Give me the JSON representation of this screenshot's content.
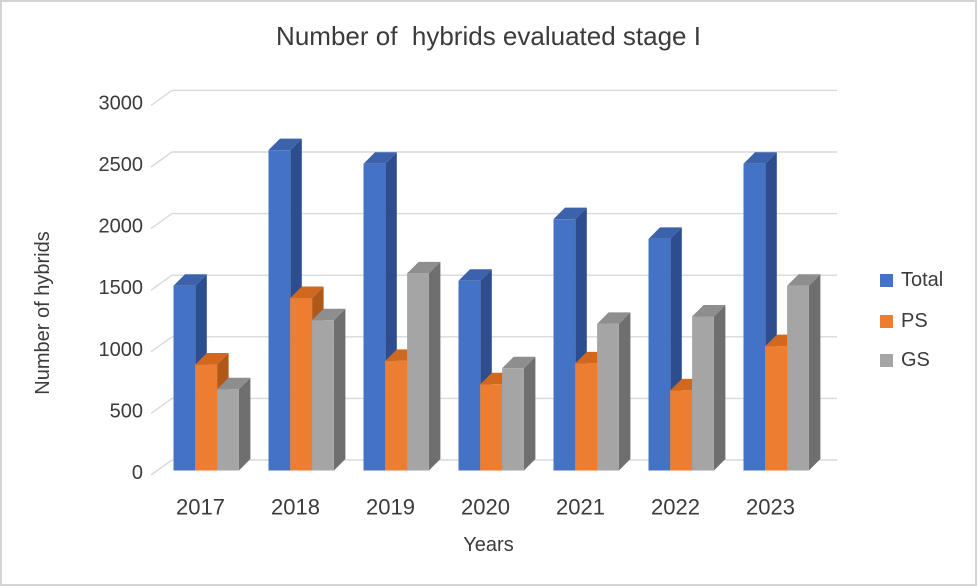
{
  "chart_data": {
    "type": "bar",
    "variant": "3d-clustered-column",
    "title": "Number of  hybrids evaluated stage I",
    "xlabel": "Years",
    "ylabel": "Number of hybrids",
    "ylim": [
      0,
      3000
    ],
    "ytick_step": 500,
    "grid": true,
    "legend_position": "right",
    "categories": [
      "2017",
      "2018",
      "2019",
      "2020",
      "2021",
      "2022",
      "2023"
    ],
    "series": [
      {
        "name": "Total",
        "color": "#4472C4",
        "side_color": "#2E4D8E",
        "top_color": "#3C62AB",
        "values": [
          1500,
          2600,
          2490,
          1540,
          2040,
          1880,
          2490
        ]
      },
      {
        "name": "PS",
        "color": "#ED7D31",
        "side_color": "#B05818",
        "top_color": "#D0691F",
        "values": [
          860,
          1400,
          890,
          700,
          870,
          650,
          1010
        ]
      },
      {
        "name": "GS",
        "color": "#A5A5A5",
        "side_color": "#6F6F6F",
        "top_color": "#8E8E8E",
        "values": [
          660,
          1220,
          1600,
          830,
          1190,
          1250,
          1500
        ]
      }
    ],
    "gridline_color": "#D9D9D9",
    "text_color": "#3B3B3B",
    "background": "#FFFFFF",
    "frame_border_color": "#D4D4D4"
  }
}
